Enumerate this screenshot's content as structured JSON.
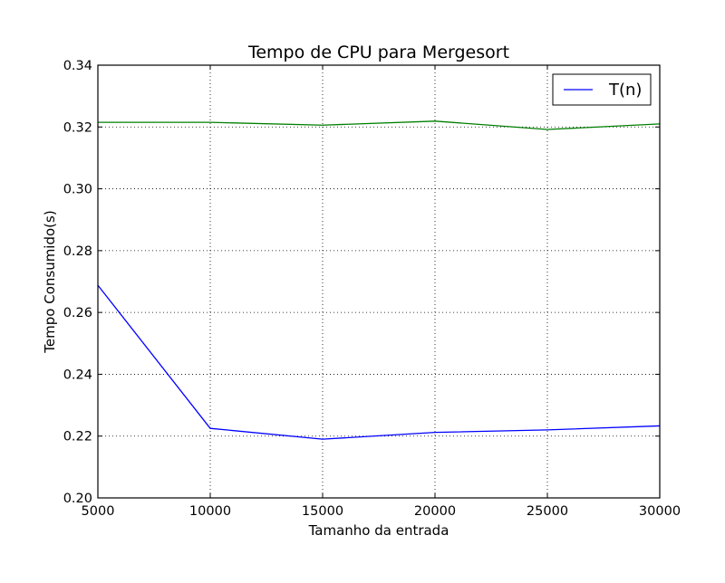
{
  "chart_data": {
    "type": "line",
    "title": "Tempo de CPU para Mergesort",
    "xlabel": "Tamanho da entrada",
    "ylabel": "Tempo Consumido(s)",
    "xlim": [
      5000,
      30000
    ],
    "ylim": [
      0.2,
      0.34
    ],
    "xticks": [
      5000,
      10000,
      15000,
      20000,
      25000,
      30000
    ],
    "xtick_labels": [
      "5000",
      "10000",
      "15000",
      "20000",
      "25000",
      "30000"
    ],
    "yticks": [
      0.2,
      0.22,
      0.24,
      0.26,
      0.28,
      0.3,
      0.32,
      0.34
    ],
    "ytick_labels": [
      "0.20",
      "0.22",
      "0.24",
      "0.26",
      "0.28",
      "0.30",
      "0.32",
      "0.34"
    ],
    "grid": true,
    "legend_position": "top-right",
    "x": [
      5000,
      10000,
      15000,
      20000,
      25000,
      30000
    ],
    "series": [
      {
        "name": "T(n)",
        "color": "#0000ff",
        "values": [
          0.2688,
          0.2225,
          0.219,
          0.2212,
          0.222,
          0.2233
        ],
        "in_legend": true
      },
      {
        "color": "#007f00",
        "values": [
          0.3215,
          0.3215,
          0.3206,
          0.3219,
          0.3192,
          0.321
        ],
        "in_legend": false
      }
    ]
  }
}
